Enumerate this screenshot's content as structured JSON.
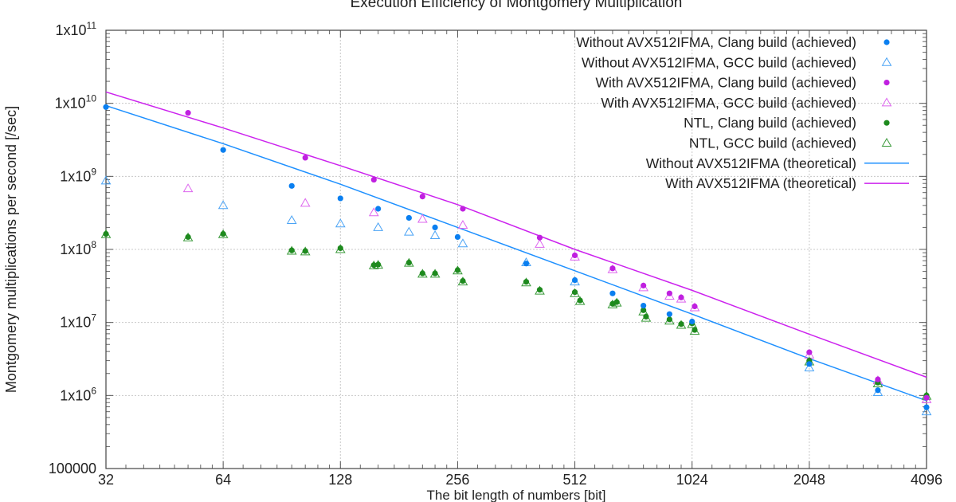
{
  "chart_data": {
    "type": "scatter",
    "title": "Execution Efficiency of Montgomery Multiplication",
    "xlabel": "The bit length of numbers [bit]",
    "ylabel": "Montgomery multiplications per second [/sec]",
    "x_scale": "log2",
    "y_scale": "log10",
    "xlim": [
      32,
      4096
    ],
    "ylim": [
      100000,
      100000000000
    ],
    "x_ticks": [
      "32",
      "64",
      "128",
      "256",
      "512",
      "1024",
      "2048",
      "4096"
    ],
    "y_ticks": [
      {
        "base": "1x10",
        "exp": "11"
      },
      {
        "base": "1x10",
        "exp": "10"
      },
      {
        "base": "1x10",
        "exp": "9"
      },
      {
        "base": "1x10",
        "exp": "8"
      },
      {
        "base": "1x10",
        "exp": "7"
      },
      {
        "base": "1x10",
        "exp": "6"
      },
      {
        "base": "100000",
        "exp": ""
      }
    ],
    "grid": true,
    "legend_position": "top-right",
    "series": [
      {
        "name": "Without AVX512IFMA, Clang build (achieved)",
        "marker": "dot",
        "color": "#0a7ff0",
        "x": [
          32,
          64,
          96,
          128,
          160,
          192,
          224,
          256,
          384,
          512,
          640,
          768,
          896,
          1024,
          2048,
          3072,
          4096
        ],
        "y": [
          8900000000.0,
          2300000000.0,
          740000000.0,
          500000000.0,
          360000000.0,
          270000000.0,
          200000000.0,
          148000000.0,
          64000000.0,
          38000000.0,
          25000000.0,
          17000000.0,
          13000000.0,
          10300000.0,
          2700000.0,
          1180000.0,
          690000.0
        ]
      },
      {
        "name": "Without AVX512IFMA, GCC build (achieved)",
        "marker": "open-triangle",
        "color": "#4aa3f5",
        "x": [
          32,
          64,
          96,
          128,
          160,
          192,
          224,
          264,
          384,
          512,
          2048,
          3072,
          4096
        ],
        "y": [
          870000000.0,
          400000000.0,
          250000000.0,
          225000000.0,
          200000000.0,
          173000000.0,
          155000000.0,
          120000000.0,
          66000000.0,
          36000000.0,
          2400000.0,
          1100000.0,
          600000.0
        ]
      },
      {
        "name": "With AVX512IFMA, Clang build (achieved)",
        "marker": "dot",
        "color": "#c020e0",
        "x": [
          52,
          104,
          156,
          208,
          264,
          416,
          512,
          640,
          768,
          896,
          960,
          1040,
          2048,
          3072,
          4096
        ],
        "y": [
          7400000000.0,
          1800000000.0,
          900000000.0,
          530000000.0,
          360000000.0,
          145000000.0,
          83000000.0,
          55000000.0,
          32000000.0,
          25000000.0,
          22000000.0,
          16600000.0,
          3900000.0,
          1660000.0,
          930000.0
        ]
      },
      {
        "name": "With AVX512IFMA, GCC build (achieved)",
        "marker": "open-triangle",
        "color": "#dd66ee",
        "x": [
          52,
          104,
          156,
          208,
          264,
          416,
          512,
          640,
          768,
          896,
          960,
          1040,
          2048,
          3072,
          4096
        ],
        "y": [
          680000000.0,
          430000000.0,
          320000000.0,
          260000000.0,
          215000000.0,
          118000000.0,
          79000000.0,
          53000000.0,
          30000000.0,
          23000000.0,
          21000000.0,
          16000000.0,
          3600000.0,
          1600000.0,
          880000.0
        ]
      },
      {
        "name": "NTL, Clang build (achieved)",
        "marker": "dot",
        "color": "#1e8a1e",
        "x": [
          32,
          52,
          64,
          96,
          104,
          128,
          156,
          160,
          192,
          208,
          224,
          256,
          264,
          384,
          416,
          512,
          528,
          640,
          656,
          768,
          780,
          896,
          960,
          1024,
          1040,
          2048,
          3072,
          4096
        ],
        "y": [
          163000000.0,
          148000000.0,
          163000000.0,
          97000000.0,
          95000000.0,
          104000000.0,
          61000000.0,
          62000000.0,
          66000000.0,
          47000000.0,
          47000000.0,
          52000000.0,
          37000000.0,
          36000000.0,
          28000000.0,
          26000000.0,
          20000000.0,
          18000000.0,
          19000000.0,
          14700000.0,
          12000000.0,
          11000000.0,
          9500000.0,
          9700000.0,
          7900000.0,
          3000000.0,
          1500000.0,
          1000000.0
        ]
      },
      {
        "name": "NTL, GCC build (achieved)",
        "marker": "open-triangle",
        "color": "#3a9a3a",
        "x": [
          32,
          52,
          64,
          96,
          104,
          128,
          156,
          160,
          192,
          208,
          224,
          256,
          264,
          384,
          416,
          512,
          528,
          640,
          656,
          768,
          780,
          896,
          960,
          1024,
          1040,
          2048,
          3072,
          4096
        ],
        "y": [
          160000000.0,
          145000000.0,
          160000000.0,
          95000000.0,
          93000000.0,
          100000000.0,
          60000000.0,
          61000000.0,
          65000000.0,
          46000000.0,
          46000000.0,
          51000000.0,
          36000000.0,
          35000000.0,
          27000000.0,
          25000000.0,
          19500000.0,
          17500000.0,
          18500000.0,
          14000000.0,
          11500000.0,
          10500000.0,
          9200000.0,
          9400000.0,
          7600000.0,
          2900000.0,
          1450000.0,
          980000.0
        ]
      },
      {
        "name": "Without AVX512IFMA (theoretical)",
        "marker": "line",
        "color": "#1e90ff",
        "x": [
          32,
          64,
          128,
          256,
          512,
          1024,
          2048,
          4096
        ],
        "y": [
          9300000000.0,
          2800000000.0,
          780000000.0,
          200000000.0,
          51000000.0,
          13000000.0,
          3200000.0,
          850000.0
        ]
      },
      {
        "name": "With AVX512IFMA (theoretical)",
        "marker": "line",
        "color": "#cc22ee",
        "x": [
          32,
          64,
          128,
          256,
          512,
          1024,
          2048,
          4096
        ],
        "y": [
          14300000000.0,
          4600000000.0,
          1400000000.0,
          410000000.0,
          100000000.0,
          27500000.0,
          6900000.0,
          1780000.0
        ]
      }
    ]
  }
}
